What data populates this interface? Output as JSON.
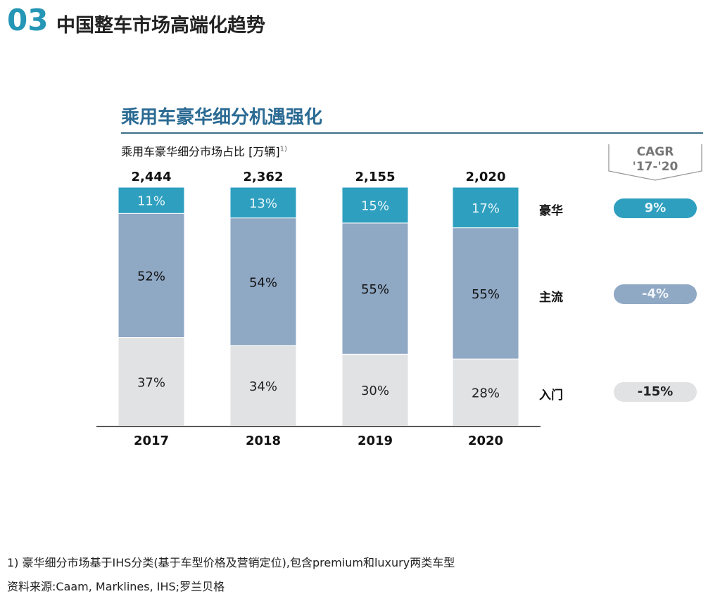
{
  "header": {
    "number": "03",
    "title": "中国整车市场高端化趋势"
  },
  "chart_data": {
    "type": "bar",
    "stacked": "percent",
    "title": "乘用车豪华细分机遇强化",
    "subtitle": "乘用车豪华细分市场占比 [万辆]",
    "subtitle_footnote": "1)",
    "categories": [
      "2017",
      "2018",
      "2019",
      "2020"
    ],
    "totals": [
      "2,444",
      "2,362",
      "2,155",
      "2,020"
    ],
    "series": [
      {
        "name": "入门",
        "values": [
          37,
          34,
          30,
          28
        ],
        "color": "#e0e2e3",
        "text_color": "#222"
      },
      {
        "name": "主流",
        "values": [
          52,
          54,
          55,
          55
        ],
        "color": "#8fa8c4",
        "text_color": "#111"
      },
      {
        "name": "豪华",
        "values": [
          11,
          13,
          15,
          17
        ],
        "color": "#2e9fbf",
        "text_color": "#e8f6fa"
      }
    ],
    "unit": "%",
    "cagr": {
      "header_line1": "CAGR",
      "header_line2": "'17-'20",
      "values": {
        "豪华": "9%",
        "主流": "-4%",
        "入门": "-15%"
      }
    }
  },
  "footnotes": [
    "1) 豪华细分市场基于IHS分类(基于车型价格及营销定位),包含premium和luxury两类车型",
    "资料来源:Caam, Marklines, IHS;罗兰贝格"
  ]
}
